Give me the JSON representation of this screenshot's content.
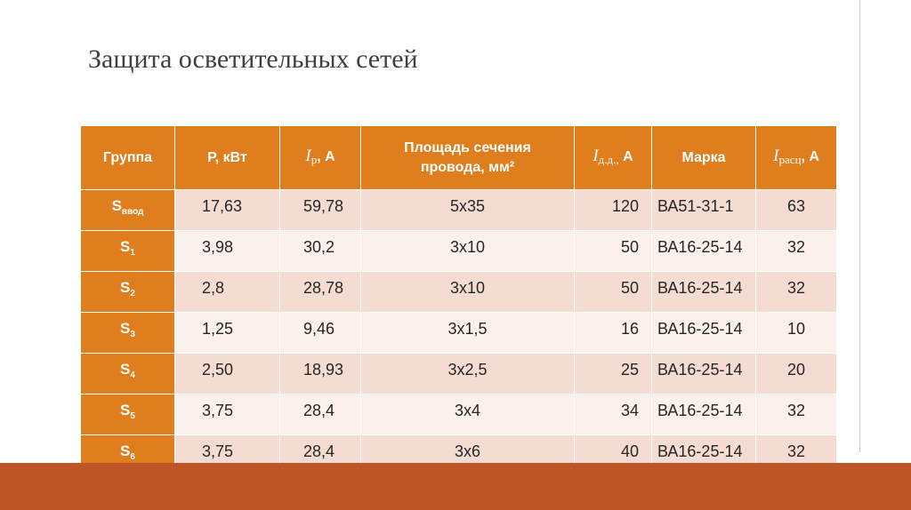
{
  "slide": {
    "title": "Защита осветительных сетей"
  },
  "table": {
    "headers": {
      "group": "Группа",
      "power": "P, кВт",
      "ip_sym": "I",
      "ip_sub": "р",
      "ip_unit": ", А",
      "area_line1": "Площадь сечения",
      "area_line2": "провода, мм²",
      "idd_sym": "I",
      "idd_sub": "д.д.,",
      "idd_unit": " А",
      "brand": "Марка",
      "irasc_sym": "I",
      "irasc_sub": "расц",
      "irasc_unit": ", А"
    },
    "rows": [
      {
        "g": "S",
        "gs": "ввод",
        "p": "17,63",
        "ip": "59,78",
        "area": "5х35",
        "idd": "120",
        "brand": "ВА51-31-1",
        "irasc": "63"
      },
      {
        "g": "S",
        "gs": "1",
        "p": "3,98",
        "ip": "30,2",
        "area": "3х10",
        "idd": "50",
        "brand": "ВА16-25-14",
        "irasc": "32"
      },
      {
        "g": "S",
        "gs": "2",
        "p": "2,8",
        "ip": "28,78",
        "area": "3х10",
        "idd": "50",
        "brand": "ВА16-25-14",
        "irasc": "32"
      },
      {
        "g": "S",
        "gs": "3",
        "p": "1,25",
        "ip": "9,46",
        "area": "3х1,5",
        "idd": "16",
        "brand": "ВА16-25-14",
        "irasc": "10"
      },
      {
        "g": "S",
        "gs": "4",
        "p": "2,50",
        "ip": "18,93",
        "area": "3х2,5",
        "idd": "25",
        "brand": "ВА16-25-14",
        "irasc": "20"
      },
      {
        "g": "S",
        "gs": "5",
        "p": "3,75",
        "ip": "28,4",
        "area": "3х4",
        "idd": "34",
        "brand": "ВА16-25-14",
        "irasc": "32"
      },
      {
        "g": "S",
        "gs": "6",
        "p": "3,75",
        "ip": "28,4",
        "area": "3х6",
        "idd": "40",
        "brand": "ВА16-25-14",
        "irasc": "32"
      }
    ]
  },
  "colors": {
    "header_bg": "#e07d1d",
    "row_odd": "#f5dcd2",
    "row_even": "#fbf0ec",
    "footer": "#bf5628"
  }
}
